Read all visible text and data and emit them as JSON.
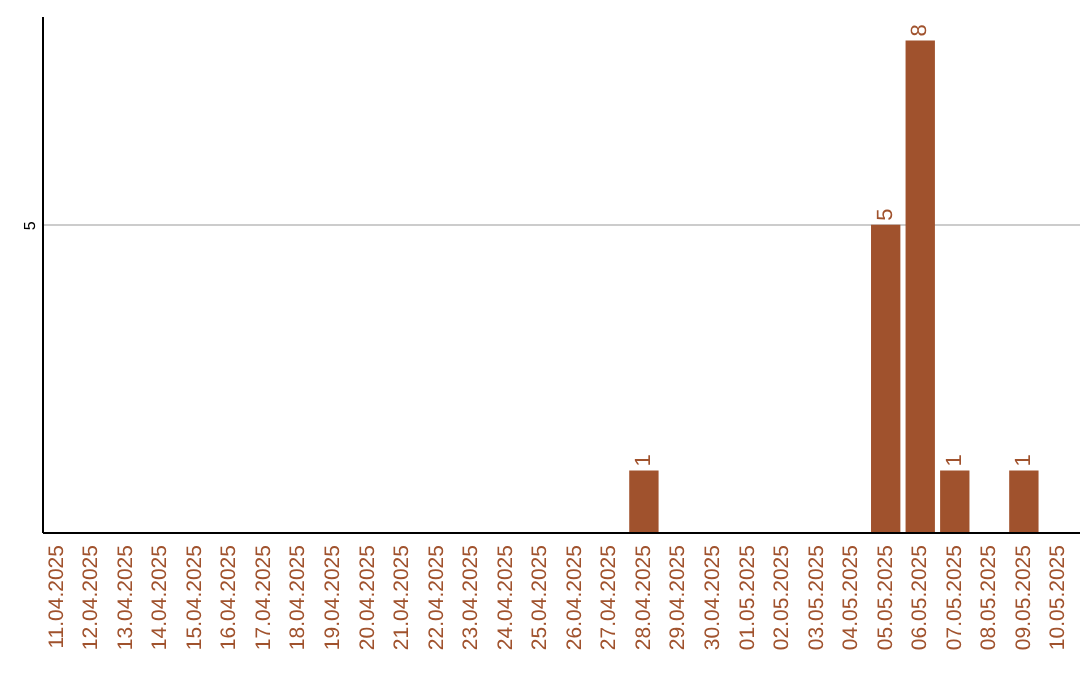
{
  "chart_data": {
    "type": "bar",
    "categories": [
      "11.04.2025",
      "12.04.2025",
      "13.04.2025",
      "14.04.2025",
      "15.04.2025",
      "16.04.2025",
      "17.04.2025",
      "18.04.2025",
      "19.04.2025",
      "20.04.2025",
      "21.04.2025",
      "22.04.2025",
      "23.04.2025",
      "24.04.2025",
      "25.04.2025",
      "26.04.2025",
      "27.04.2025",
      "28.04.2025",
      "29.04.2025",
      "30.04.2025",
      "01.05.2025",
      "02.05.2025",
      "03.05.2025",
      "04.05.2025",
      "05.05.2025",
      "06.05.2025",
      "07.05.2025",
      "08.05.2025",
      "09.05.2025",
      "10.05.2025"
    ],
    "values": [
      null,
      null,
      null,
      null,
      null,
      null,
      null,
      null,
      null,
      null,
      null,
      null,
      null,
      null,
      null,
      null,
      null,
      1,
      null,
      null,
      null,
      null,
      null,
      null,
      5,
      8,
      1,
      null,
      1,
      null
    ],
    "value_labels": [
      null,
      null,
      null,
      null,
      null,
      null,
      null,
      null,
      null,
      null,
      null,
      null,
      null,
      null,
      null,
      null,
      null,
      "1",
      null,
      null,
      null,
      null,
      null,
      null,
      "5",
      "8",
      "1",
      null,
      "1",
      null
    ],
    "color": "#a0522d",
    "ylim": [
      0,
      8.4
    ],
    "yticks": [
      5
    ],
    "grid": "y"
  }
}
